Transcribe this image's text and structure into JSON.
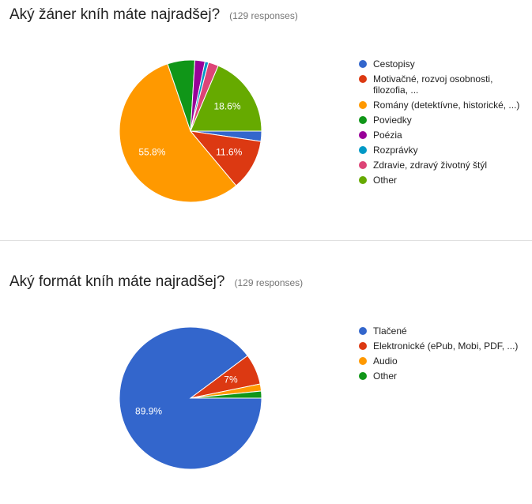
{
  "chart_data": [
    {
      "type": "pie",
      "title": "Aký žáner kníh máte najradšej?",
      "subtitle": "(129 responses)",
      "categories": [
        "Cestopisy",
        "Motivačné, rozvoj osobnosti, filozofia, ...",
        "Romány (detektívne, historické, ...)",
        "Poviedky",
        "Poézia",
        "Rozprávky",
        "Zdravie, zdravý životný štýl",
        "Other"
      ],
      "values": [
        2.3,
        11.6,
        55.8,
        6.2,
        2.3,
        0.8,
        2.3,
        18.6
      ],
      "value_labels": [
        null,
        "11.6%",
        "55.8%",
        null,
        null,
        null,
        null,
        "18.6%"
      ],
      "colors": [
        "#3366cc",
        "#dc3912",
        "#ff9900",
        "#109618",
        "#990099",
        "#0099c6",
        "#dd4477",
        "#66aa00"
      ]
    },
    {
      "type": "pie",
      "title": "Aký formát kníh máte najradšej?",
      "subtitle": "(129 responses)",
      "categories": [
        "Tlačené",
        "Elektronické (ePub, Mobi, PDF, ...)",
        "Audio",
        "Other"
      ],
      "values": [
        89.9,
        7.0,
        1.6,
        1.6
      ],
      "value_labels": [
        "89.9%",
        "7%",
        null,
        null
      ],
      "colors": [
        "#3366cc",
        "#dc3912",
        "#ff9900",
        "#109618"
      ]
    }
  ]
}
